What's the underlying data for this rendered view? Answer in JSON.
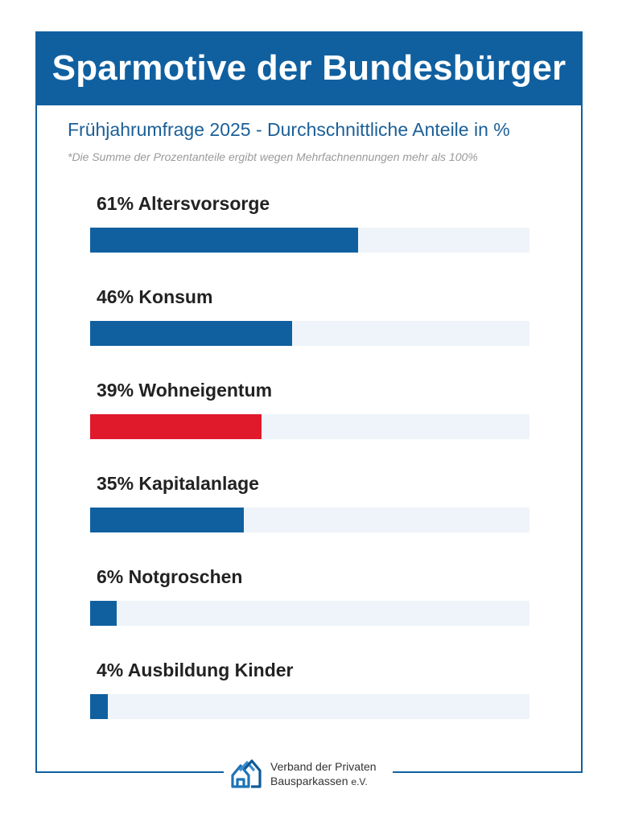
{
  "header": {
    "title": "Sparmotive der Bundesbürger"
  },
  "subtitle": "Frühjahrumfrage 2025 - Durchschnittliche Anteile in %",
  "note": "*Die Summe der Prozentanteile ergibt wegen Mehrfachnennungen mehr als 100%",
  "colors": {
    "brand": "#1060a0",
    "bar_default": "#1060a0",
    "bar_highlight": "#e01a2b",
    "track": "#eef4f9"
  },
  "chart_data": {
    "type": "bar",
    "orientation": "horizontal",
    "categories": [
      "Altersvorsorge",
      "Konsum",
      "Wohneigentum",
      "Kapitalanlage",
      "Notgroschen",
      "Ausbildung Kinder"
    ],
    "values": [
      61,
      46,
      39,
      35,
      6,
      4
    ],
    "labels": [
      "61% Altersvorsorge",
      "46% Konsum",
      "39% Wohneigentum",
      "35% Kapitalanlage",
      "6% Notgroschen",
      "4% Ausbildung Kinder"
    ],
    "highlight_index": 2,
    "xlim": [
      0,
      100
    ],
    "unit": "%"
  },
  "footer": {
    "org_line1": "Verband der Privaten",
    "org_line2": "Bausparkassen",
    "org_suffix": "e.V.",
    "logo_icon": "houses-logo-icon"
  }
}
